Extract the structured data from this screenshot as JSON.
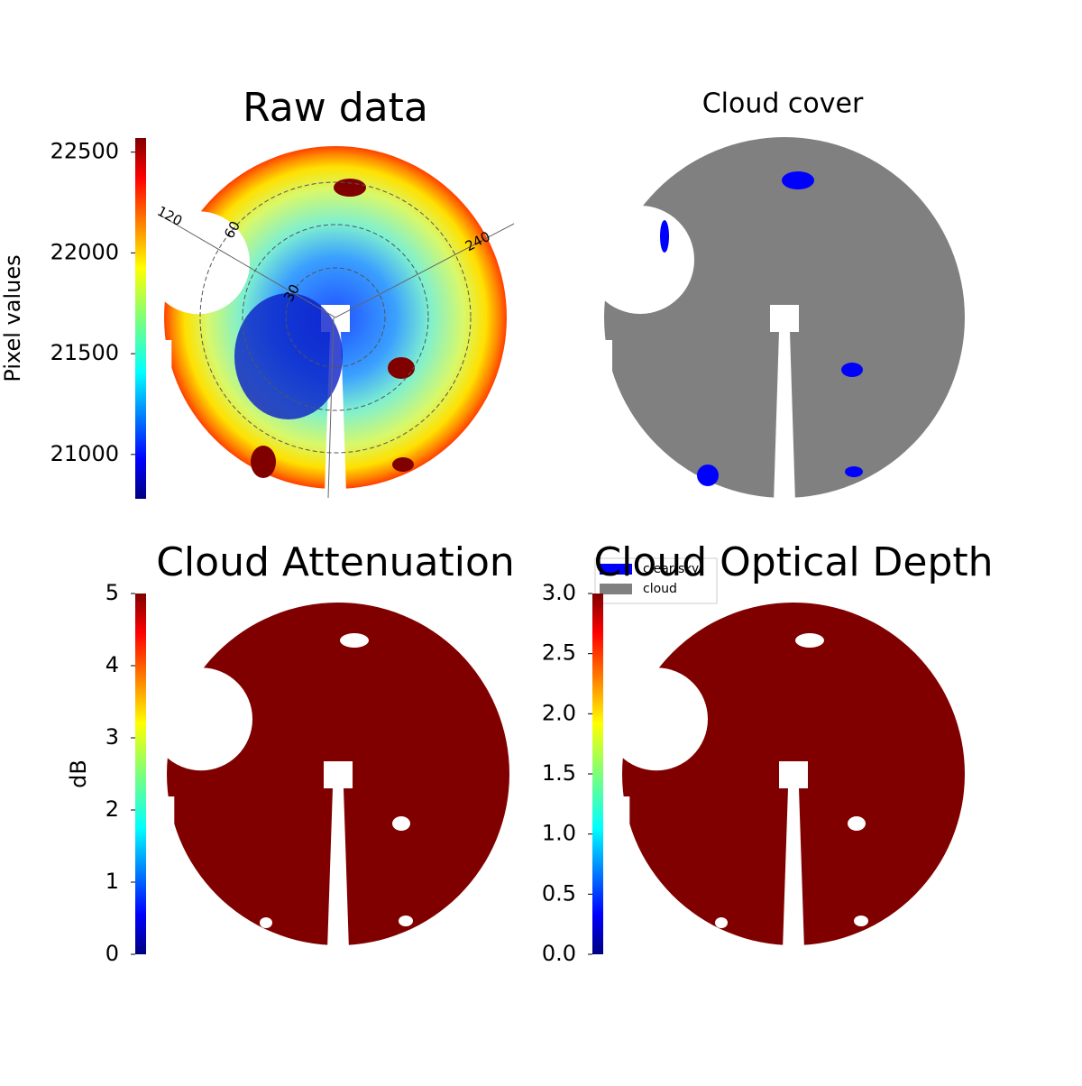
{
  "chart_data": [
    {
      "type": "image",
      "title": "Raw data",
      "colorbar_label": "Pixel values",
      "colormap": "jet",
      "ylim": [
        20780,
        22570
      ],
      "yticks": [
        21000,
        21500,
        22000,
        22500
      ],
      "annotations": [
        "120",
        "240",
        "60",
        "30"
      ]
    },
    {
      "type": "image",
      "title": "Cloud cover",
      "series": [
        {
          "name": "clear sky",
          "color": "#0000ff"
        },
        {
          "name": "cloud",
          "color": "#808080"
        }
      ]
    },
    {
      "type": "image",
      "title": "Cloud Attenuation",
      "colorbar_label": "dB",
      "colormap": "jet",
      "ylim": [
        0,
        5
      ],
      "yticks": [
        0,
        1,
        2,
        3,
        4,
        5
      ],
      "color": "#800000"
    },
    {
      "type": "image",
      "title": "Cloud Optical Depth",
      "colormap": "jet",
      "ylim": [
        0,
        3
      ],
      "yticks": [
        {
          "value": 0,
          "label": "0.0"
        },
        {
          "value": 0.5,
          "label": "0.5"
        },
        {
          "value": 1,
          "label": "1.0"
        },
        {
          "value": 1.5,
          "label": "1.5"
        },
        {
          "value": 2,
          "label": "2.0"
        },
        {
          "value": 2.5,
          "label": "2.5"
        },
        {
          "value": 3,
          "label": "3.0"
        }
      ],
      "color": "#800000"
    }
  ]
}
